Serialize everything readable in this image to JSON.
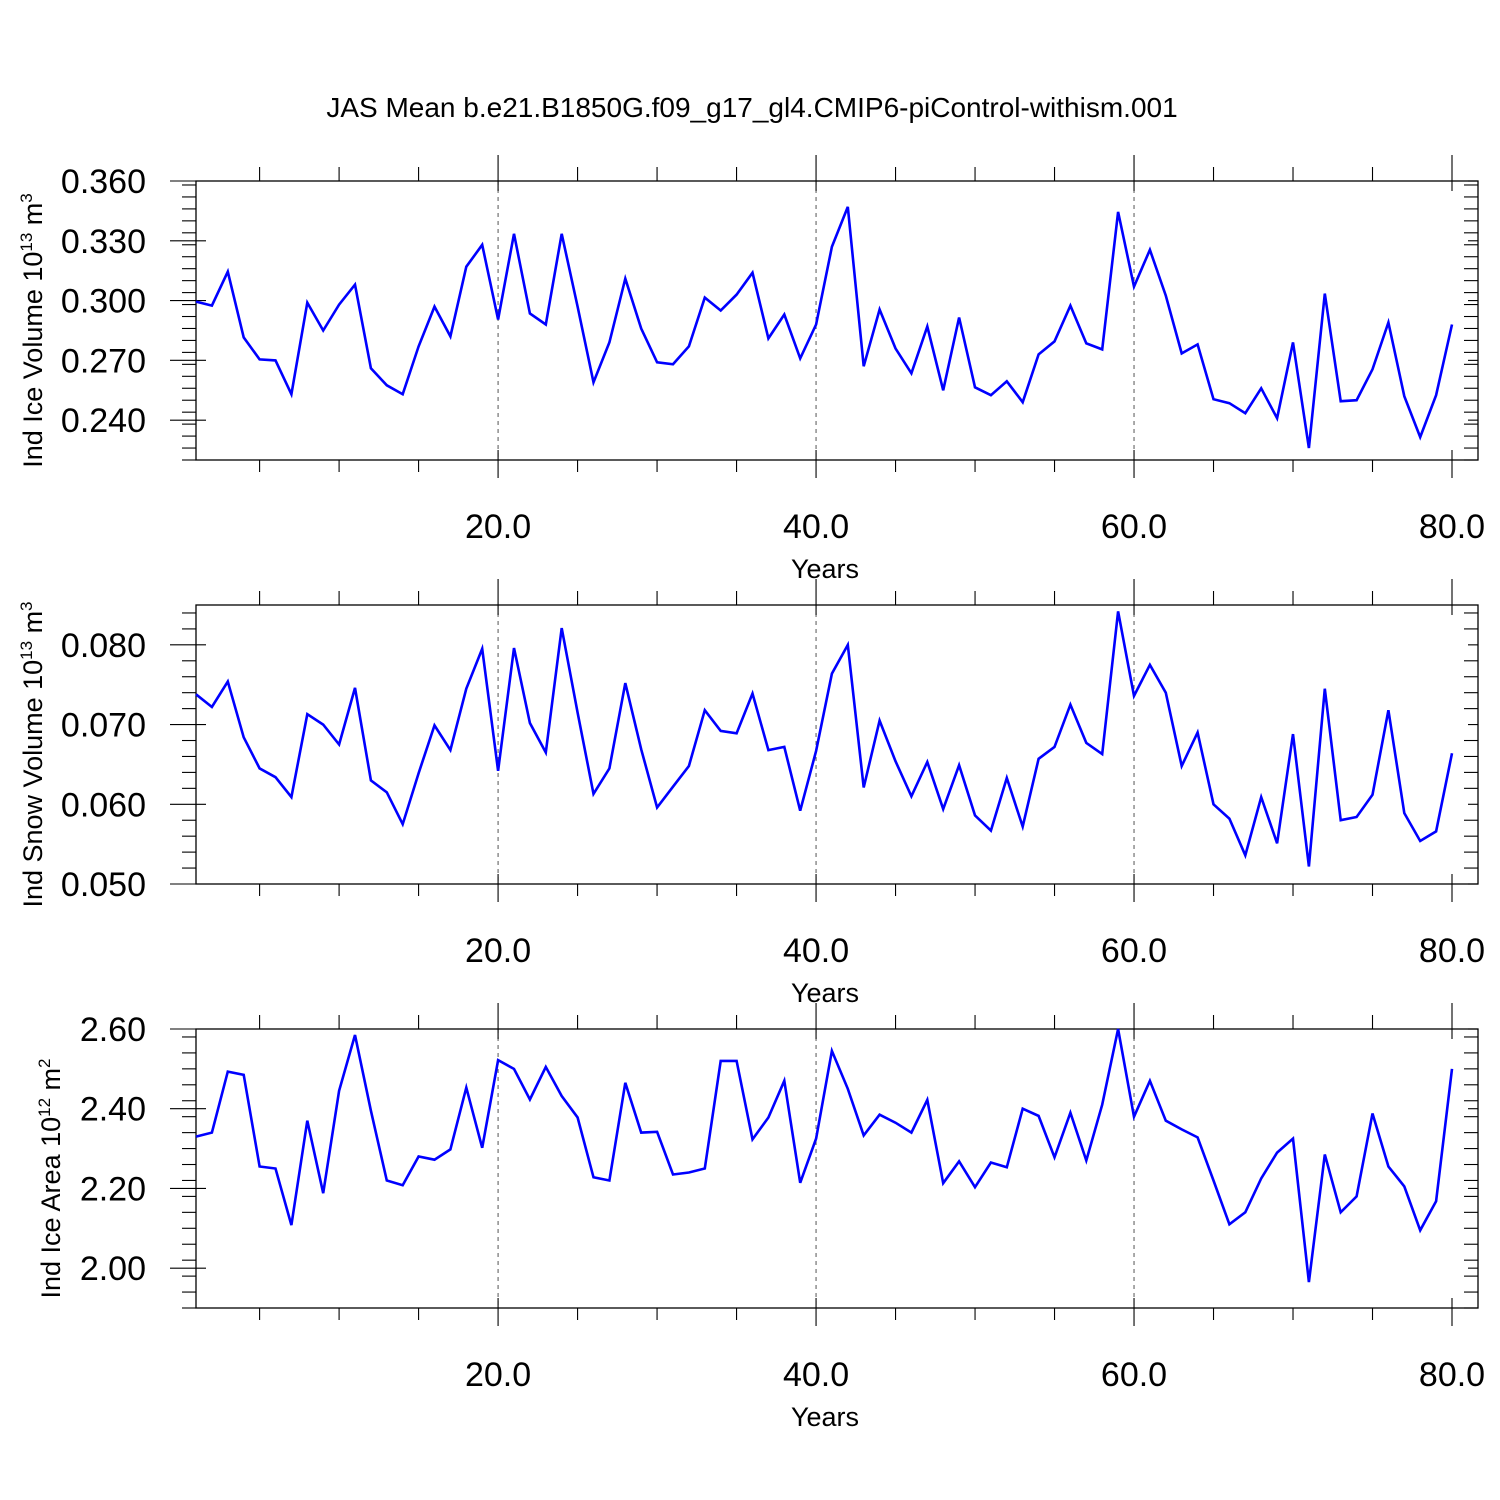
{
  "title": "JAS Mean b.e21.B1850G.f09_g17_gl4.CMIP6-piControl-withism.001",
  "colors": {
    "series": "#0000ff",
    "axes": "#000000",
    "grid": "#555555"
  },
  "chart_data": [
    {
      "type": "line",
      "ylabel": "Ind Ice Volume",
      "yunit": "10",
      "yunit_exp": "13",
      "yunit_tail": " m",
      "yunit_tail_exp": "3",
      "xlabel": "Years",
      "xlim": [
        1,
        80
      ],
      "ylim": [
        0.22,
        0.36
      ],
      "xticks": [
        20,
        40,
        60,
        80
      ],
      "xtick_labels": [
        "20.0",
        "40.0",
        "60.0",
        "80.0"
      ],
      "yticks": [
        0.24,
        0.27,
        0.3,
        0.33,
        0.36
      ],
      "ytick_labels": [
        "0.240",
        "0.270",
        "0.300",
        "0.330",
        "0.360"
      ],
      "grid_x": [
        20,
        40,
        60
      ],
      "x_start": 1,
      "values": [
        0.2995,
        0.2975,
        0.3145,
        0.2815,
        0.2705,
        0.27,
        0.253,
        0.299,
        0.285,
        0.298,
        0.308,
        0.266,
        0.2575,
        0.253,
        0.277,
        0.297,
        0.282,
        0.317,
        0.328,
        0.2905,
        0.3335,
        0.2935,
        0.288,
        0.3335,
        0.297,
        0.259,
        0.279,
        0.311,
        0.286,
        0.269,
        0.268,
        0.277,
        0.3015,
        0.295,
        0.303,
        0.314,
        0.281,
        0.293,
        0.271,
        0.288,
        0.327,
        0.347,
        0.267,
        0.2955,
        0.276,
        0.2635,
        0.287,
        0.255,
        0.2915,
        0.2565,
        0.2525,
        0.2595,
        0.249,
        0.273,
        0.2795,
        0.2975,
        0.2785,
        0.2755,
        0.3445,
        0.307,
        0.3255,
        0.3025,
        0.2735,
        0.278,
        0.2505,
        0.2485,
        0.2435,
        0.256,
        0.241,
        0.279,
        0.226,
        0.3035,
        0.2495,
        0.25,
        0.2655,
        0.289,
        0.252,
        0.2315,
        0.2525,
        0.288
      ]
    },
    {
      "type": "line",
      "ylabel": "Ind Snow Volume",
      "yunit": "10",
      "yunit_exp": "13",
      "yunit_tail": " m",
      "yunit_tail_exp": "3",
      "xlabel": "Years",
      "xlim": [
        1,
        80
      ],
      "ylim": [
        0.05,
        0.085
      ],
      "xticks": [
        20,
        40,
        60,
        80
      ],
      "xtick_labels": [
        "20.0",
        "40.0",
        "60.0",
        "80.0"
      ],
      "yticks": [
        0.05,
        0.06,
        0.07,
        0.08
      ],
      "ytick_labels": [
        "0.050",
        "0.060",
        "0.070",
        "0.080"
      ],
      "grid_x": [
        20,
        40,
        60
      ],
      "x_start": 1,
      "values": [
        0.0738,
        0.0722,
        0.0754,
        0.0684,
        0.0645,
        0.0634,
        0.0609,
        0.0713,
        0.07,
        0.0675,
        0.0746,
        0.063,
        0.0615,
        0.0575,
        0.0639,
        0.0699,
        0.0668,
        0.0745,
        0.0795,
        0.0642,
        0.0796,
        0.0702,
        0.0665,
        0.0821,
        0.0715,
        0.0613,
        0.0645,
        0.0752,
        0.0669,
        0.0596,
        0.0622,
        0.0648,
        0.0718,
        0.0692,
        0.0689,
        0.0739,
        0.0668,
        0.0672,
        0.0592,
        0.0667,
        0.0764,
        0.08,
        0.0621,
        0.0705,
        0.0654,
        0.061,
        0.0653,
        0.0594,
        0.0649,
        0.0586,
        0.0567,
        0.0633,
        0.0572,
        0.0657,
        0.0672,
        0.0725,
        0.0677,
        0.0663,
        0.0842,
        0.0736,
        0.0775,
        0.074,
        0.0648,
        0.069,
        0.06,
        0.0582,
        0.0536,
        0.0609,
        0.0551,
        0.0688,
        0.0522,
        0.0745,
        0.058,
        0.0584,
        0.0612,
        0.0718,
        0.0589,
        0.0554,
        0.0566,
        0.0664
      ]
    },
    {
      "type": "line",
      "ylabel": "Ind Ice Area",
      "yunit": "10",
      "yunit_exp": "12",
      "yunit_tail": " m",
      "yunit_tail_exp": "2",
      "xlabel": "Years",
      "xlim": [
        1,
        80
      ],
      "ylim": [
        1.9,
        2.6
      ],
      "xticks": [
        20,
        40,
        60,
        80
      ],
      "xtick_labels": [
        "20.0",
        "40.0",
        "60.0",
        "80.0"
      ],
      "yticks": [
        2.0,
        2.2,
        2.4,
        2.6
      ],
      "ytick_labels": [
        "2.00",
        "2.20",
        "2.40",
        "2.60"
      ],
      "grid_x": [
        20,
        40,
        60
      ],
      "x_start": 1,
      "values": [
        2.33,
        2.34,
        2.493,
        2.485,
        2.255,
        2.25,
        2.108,
        2.37,
        2.188,
        2.445,
        2.585,
        2.395,
        2.22,
        2.208,
        2.28,
        2.272,
        2.298,
        2.453,
        2.302,
        2.522,
        2.5,
        2.423,
        2.505,
        2.432,
        2.378,
        2.228,
        2.22,
        2.465,
        2.34,
        2.342,
        2.235,
        2.24,
        2.25,
        2.52,
        2.52,
        2.323,
        2.378,
        2.47,
        2.214,
        2.325,
        2.545,
        2.45,
        2.333,
        2.385,
        2.365,
        2.34,
        2.422,
        2.213,
        2.268,
        2.203,
        2.265,
        2.253,
        2.4,
        2.382,
        2.278,
        2.39,
        2.27,
        2.41,
        2.6,
        2.38,
        2.47,
        2.37,
        2.348,
        2.328,
        2.22,
        2.11,
        2.14,
        2.225,
        2.29,
        2.325,
        1.965,
        2.285,
        2.14,
        2.18,
        2.388,
        2.255,
        2.205,
        2.095,
        2.168,
        2.5
      ]
    }
  ]
}
